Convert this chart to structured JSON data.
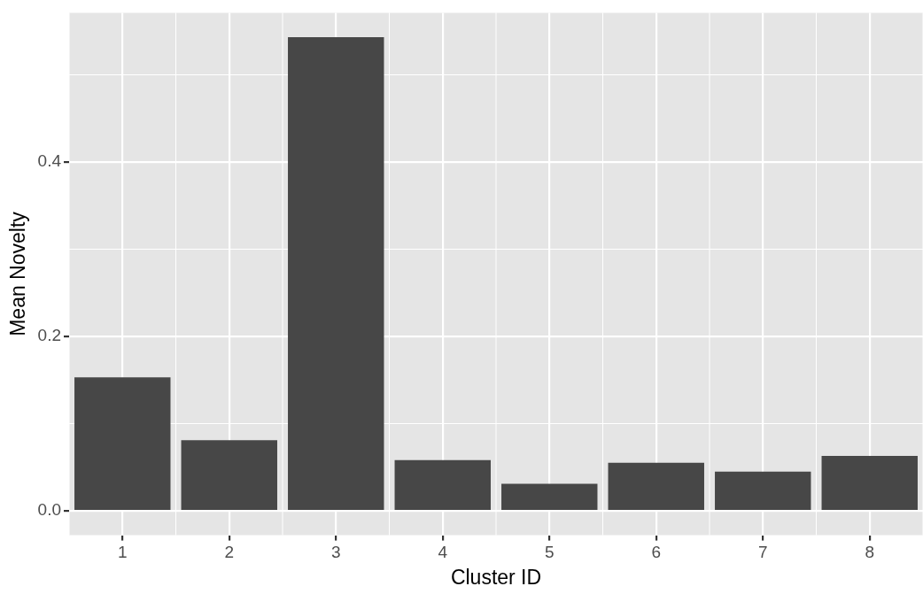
{
  "chart_data": {
    "type": "bar",
    "xlabel": "Cluster ID",
    "ylabel": "Mean Novelty",
    "categories": [
      "1",
      "2",
      "3",
      "4",
      "5",
      "6",
      "7",
      "8"
    ],
    "values": [
      0.153,
      0.081,
      0.543,
      0.058,
      0.031,
      0.055,
      0.045,
      0.063
    ],
    "color": "#474747",
    "ylim": [
      -0.028,
      0.571
    ],
    "yticks": [
      {
        "value": 0.0,
        "label": "0.0"
      },
      {
        "value": 0.1,
        "label": null
      },
      {
        "value": 0.2,
        "label": "0.2"
      },
      {
        "value": 0.3,
        "label": null
      },
      {
        "value": 0.4,
        "label": "0.4"
      },
      {
        "value": 0.5,
        "label": null
      }
    ],
    "grid": true,
    "legend": false
  }
}
